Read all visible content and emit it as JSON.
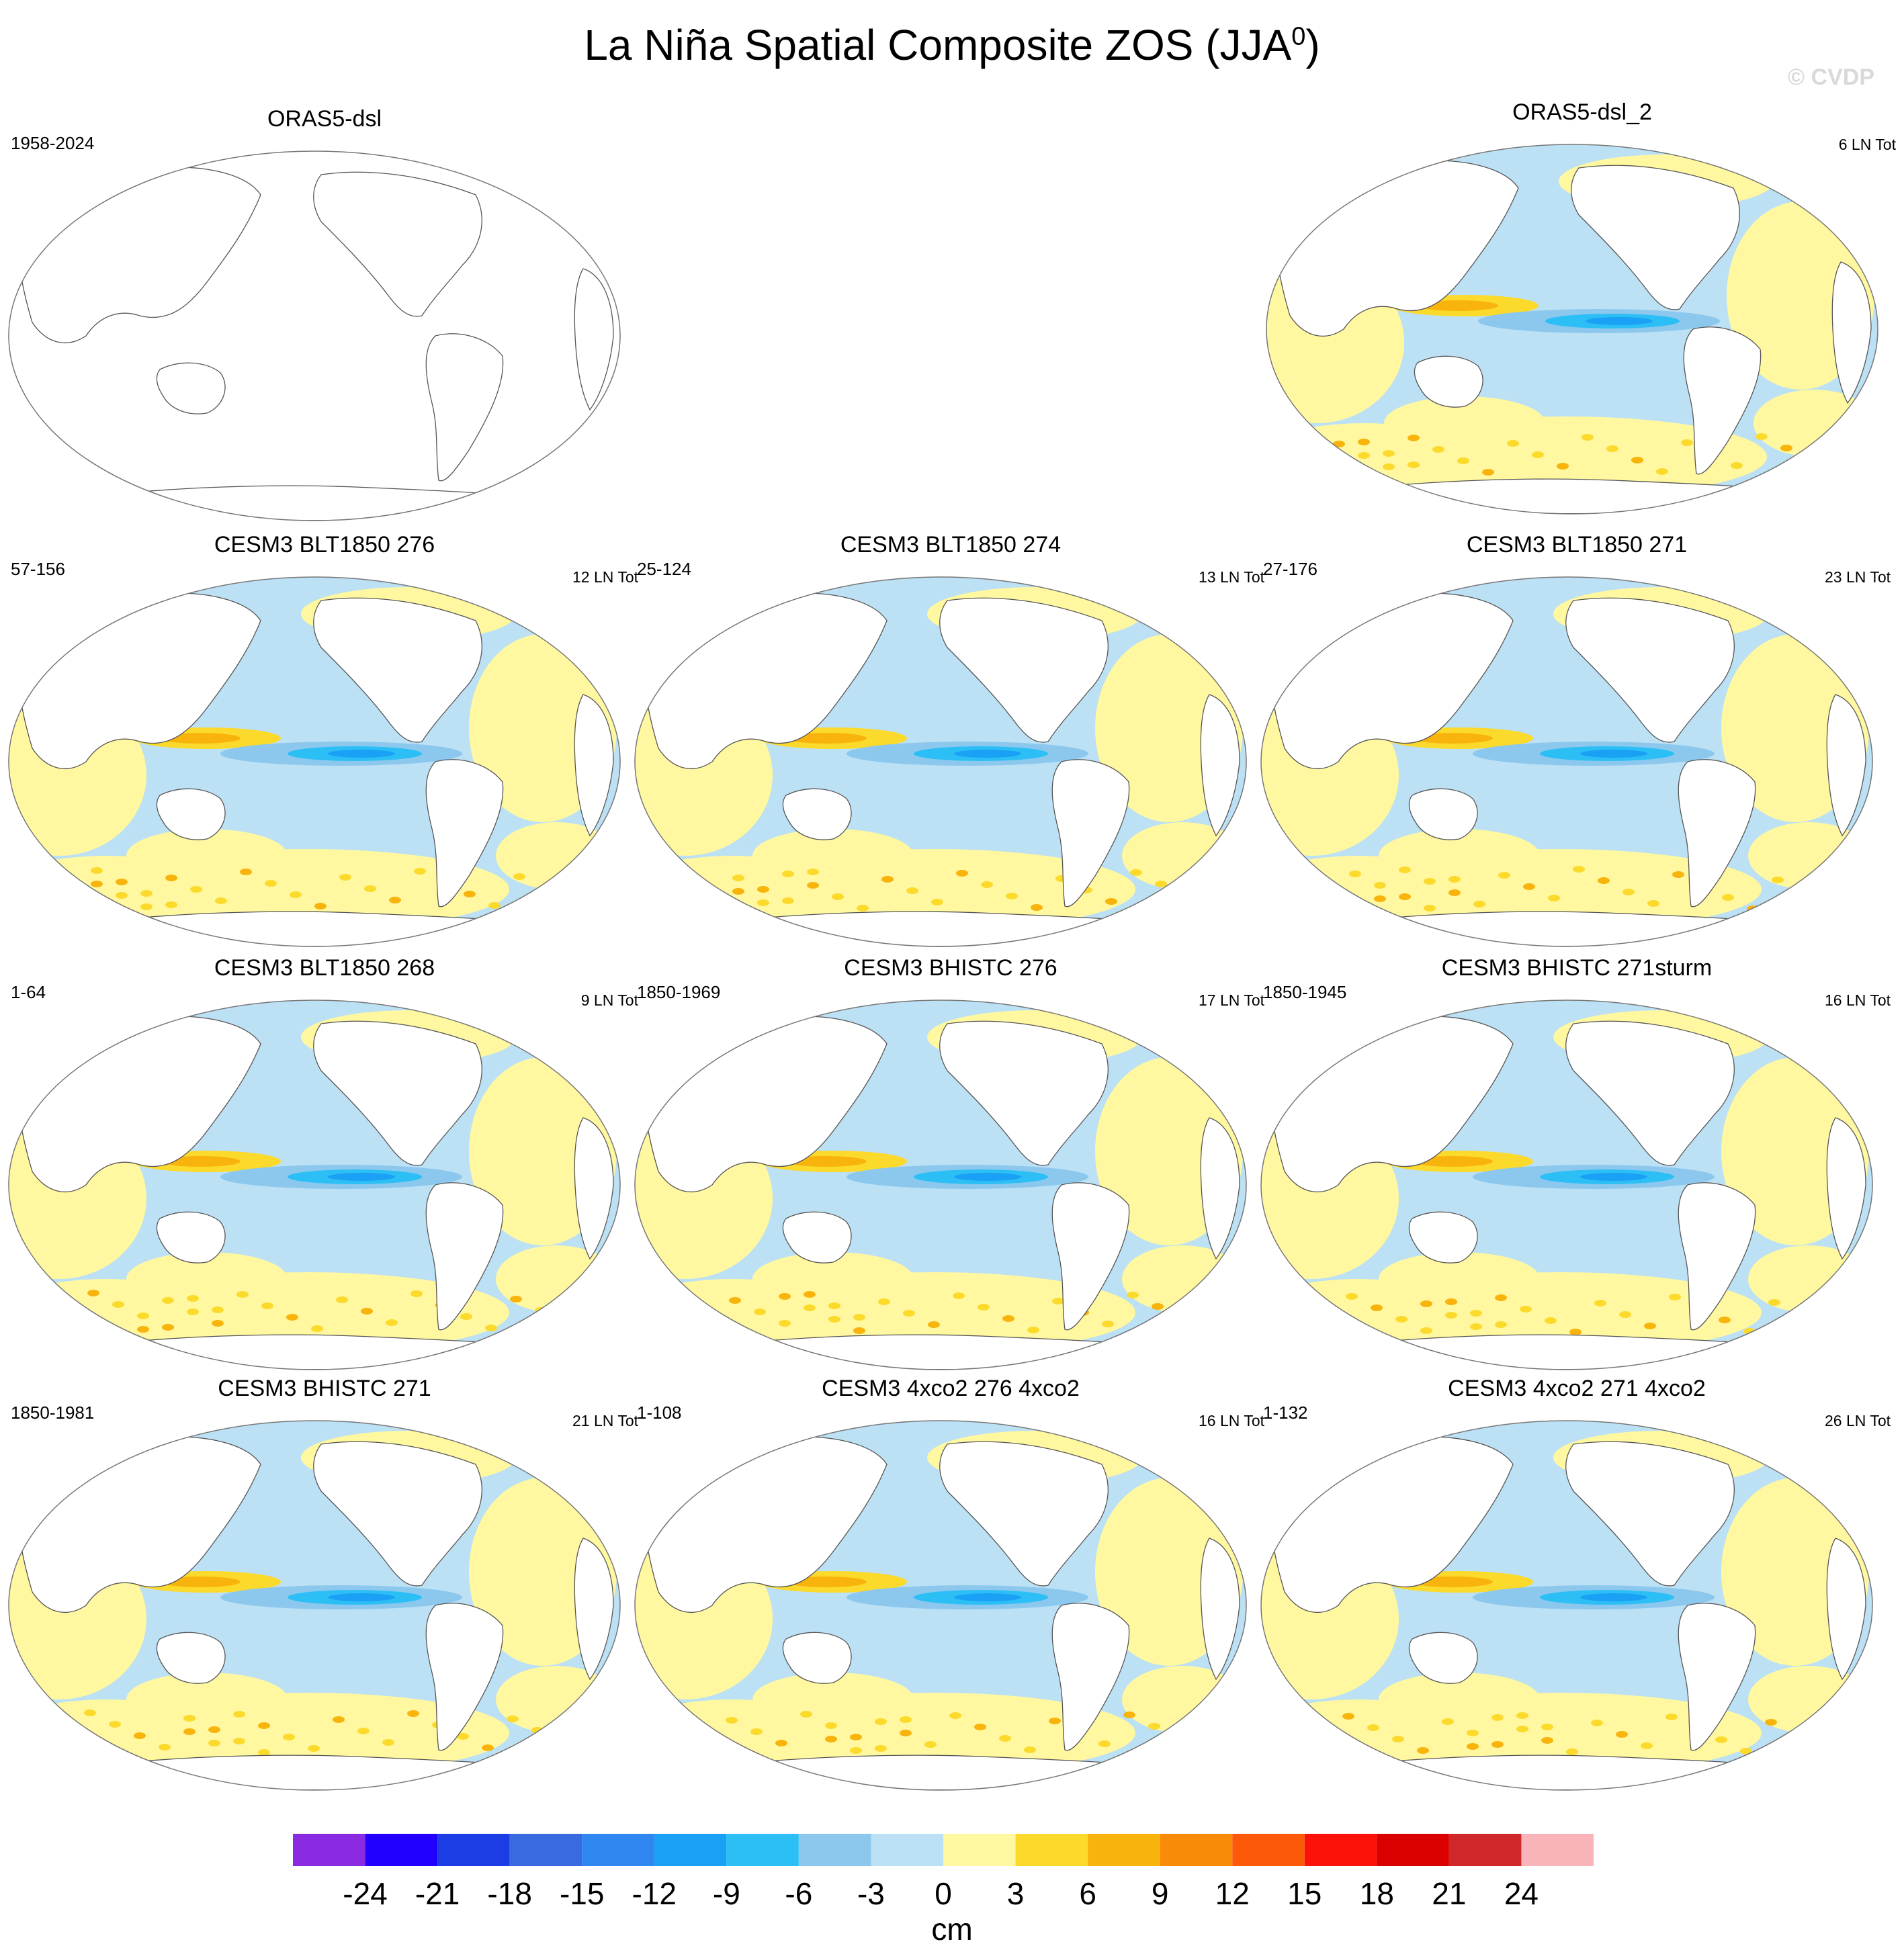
{
  "title": "La Niña Spatial Composite ZOS (JJA",
  "title_sup": "0",
  "title_close": ")",
  "watermark": "© CVDP",
  "colorbar": {
    "unit": "cm",
    "ticks": [
      "-24",
      "-21",
      "-18",
      "-15",
      "-12",
      "-9",
      "-6",
      "-3",
      "0",
      "3",
      "6",
      "9",
      "12",
      "15",
      "18",
      "21",
      "24"
    ],
    "colors": [
      "#8a2be2",
      "#2200ff",
      "#1c3ce6",
      "#3a6ae0",
      "#2f86f0",
      "#1aa0f5",
      "#2cbff5",
      "#8cc8ee",
      "#bce0f4",
      "#fff8a0",
      "#fcda2c",
      "#f8b40c",
      "#f88c08",
      "#fc5a08",
      "#fc1208",
      "#da0000",
      "#d02828",
      "#f8b4b8"
    ]
  },
  "panels": [
    {
      "id": "orasdsl",
      "title": "ORAS5-dsl",
      "left": "1958-2024",
      "right": "",
      "empty": true
    },
    {
      "id": "orasdsl2",
      "title": "ORAS5-dsl_2",
      "left": "",
      "right": "6 LN Tot",
      "empty": false
    },
    {
      "id": "blt276",
      "title": "CESM3 BLT1850 276",
      "left": "57-156",
      "right": "12 LN Tot",
      "empty": false
    },
    {
      "id": "blt274",
      "title": "CESM3 BLT1850 274",
      "left": "25-124",
      "right": "13 LN Tot",
      "empty": false
    },
    {
      "id": "blt271",
      "title": "CESM3 BLT1850 271",
      "left": "27-176",
      "right": "23 LN Tot",
      "empty": false
    },
    {
      "id": "blt268",
      "title": "CESM3 BLT1850 268",
      "left": "1-64",
      "right": "9 LN Tot",
      "empty": false
    },
    {
      "id": "bh276",
      "title": "CESM3 BHISTC 276",
      "left": "1850-1969",
      "right": "17 LN Tot",
      "empty": false
    },
    {
      "id": "bh271s",
      "title": "CESM3 BHISTC 271sturm",
      "left": "1850-1945",
      "right": "16 LN Tot",
      "empty": false
    },
    {
      "id": "bh271",
      "title": "CESM3 BHISTC 271",
      "left": "1850-1981",
      "right": "21 LN Tot",
      "empty": false
    },
    {
      "id": "x276",
      "title": "CESM3 4xco2 276 4xco2",
      "left": "1-108",
      "right": "16 LN Tot",
      "empty": false
    },
    {
      "id": "x271",
      "title": "CESM3 4xco2 271 4xco2",
      "left": "1-132",
      "right": "26 LN Tot",
      "empty": false
    }
  ],
  "chart_data": {
    "type": "heatmap",
    "title": "La Niña Spatial Composite ZOS (JJA0)",
    "colorbar_unit": "cm",
    "colorbar_levels": [
      -24,
      -21,
      -18,
      -15,
      -12,
      -9,
      -6,
      -3,
      0,
      3,
      6,
      9,
      12,
      15,
      18,
      21,
      24
    ],
    "grid": "off",
    "legend_placement": "bottom"
  }
}
